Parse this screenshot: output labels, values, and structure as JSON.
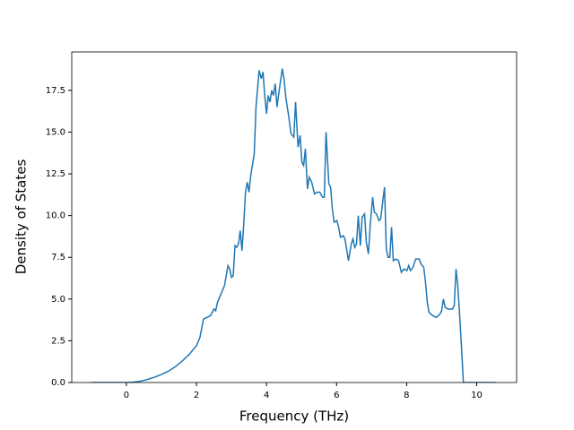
{
  "chart_data": {
    "type": "line",
    "x_label": "Frequency (THz)",
    "y_label": "Density of States",
    "color": "#1f77b4",
    "x": [
      -1.0,
      -0.5,
      0,
      0.2,
      0.4,
      0.6,
      0.8,
      1.0,
      1.2,
      1.4,
      1.6,
      1.8,
      2.0,
      2.1,
      2.2,
      2.3,
      2.4,
      2.5,
      2.55,
      2.6,
      2.7,
      2.8,
      2.9,
      2.95,
      3.0,
      3.05,
      3.1,
      3.15,
      3.2,
      3.25,
      3.3,
      3.35,
      3.4,
      3.45,
      3.5,
      3.55,
      3.65,
      3.7,
      3.79,
      3.85,
      3.9,
      3.95,
      4.0,
      4.05,
      4.1,
      4.15,
      4.2,
      4.25,
      4.3,
      4.35,
      4.45,
      4.5,
      4.55,
      4.63,
      4.7,
      4.78,
      4.83,
      4.9,
      4.96,
      5.01,
      5.06,
      5.11,
      5.17,
      5.22,
      5.29,
      5.37,
      5.45,
      5.52,
      5.6,
      5.65,
      5.7,
      5.78,
      5.83,
      5.88,
      5.93,
      6.01,
      6.06,
      6.11,
      6.19,
      6.24,
      6.34,
      6.42,
      6.47,
      6.52,
      6.57,
      6.62,
      6.68,
      6.73,
      6.8,
      6.85,
      6.91,
      6.96,
      7.03,
      7.08,
      7.14,
      7.21,
      7.26,
      7.31,
      7.37,
      7.42,
      7.47,
      7.52,
      7.57,
      7.62,
      7.7,
      7.77,
      7.85,
      7.93,
      8.01,
      8.06,
      8.11,
      8.18,
      8.26,
      8.36,
      8.41,
      8.49,
      8.54,
      8.59,
      8.64,
      8.75,
      8.85,
      8.95,
      9.0,
      9.05,
      9.1,
      9.18,
      9.31,
      9.36,
      9.41,
      9.46,
      9.51,
      9.57,
      9.62,
      9.95,
      10.54
    ],
    "values": [
      0,
      0,
      0,
      0.02,
      0.08,
      0.18,
      0.32,
      0.48,
      0.68,
      0.95,
      1.3,
      1.7,
      2.2,
      2.7,
      3.8,
      3.9,
      4.0,
      4.4,
      4.3,
      4.8,
      5.3,
      5.8,
      7.0,
      6.8,
      6.3,
      6.4,
      8.2,
      8.1,
      8.3,
      9.1,
      7.9,
      9.5,
      11.4,
      12.0,
      11.4,
      12.4,
      13.7,
      16.5,
      18.7,
      18.2,
      18.6,
      17.2,
      16.1,
      17.2,
      16.8,
      17.5,
      17.2,
      17.9,
      16.5,
      17.3,
      18.8,
      18.2,
      17.1,
      16.0,
      14.9,
      14.7,
      16.8,
      14.1,
      14.8,
      13.2,
      13.0,
      14.0,
      11.6,
      12.3,
      12.0,
      11.3,
      11.4,
      11.4,
      11.1,
      11.1,
      15.0,
      11.9,
      11.7,
      10.4,
      9.6,
      9.7,
      9.3,
      8.7,
      8.8,
      8.6,
      7.3,
      8.3,
      8.6,
      8.1,
      8.3,
      10.0,
      8.2,
      9.9,
      10.1,
      8.4,
      7.7,
      9.4,
      11.1,
      10.2,
      10.1,
      9.7,
      9.8,
      10.7,
      11.7,
      8.0,
      7.5,
      7.5,
      9.3,
      7.3,
      7.4,
      7.3,
      6.6,
      6.8,
      6.7,
      7.0,
      6.7,
      6.9,
      7.4,
      7.4,
      7.1,
      6.9,
      6.0,
      4.8,
      4.2,
      4.0,
      3.9,
      4.1,
      4.3,
      5.0,
      4.5,
      4.4,
      4.4,
      4.6,
      6.8,
      5.8,
      4.2,
      2.0,
      0,
      0,
      0
    ],
    "xlim": [
      -1.56,
      11.14
    ],
    "ylim": [
      0,
      19.8
    ],
    "xticks": [
      0,
      2,
      4,
      6,
      8,
      10
    ],
    "yticks": [
      {
        "value": 0,
        "label": "0.0"
      },
      2.5,
      {
        "value": 5,
        "label": "5.0"
      },
      7.5,
      {
        "value": 10,
        "label": "10.0"
      },
      12.5,
      {
        "value": 15,
        "label": "15.0"
      },
      17.5
    ]
  }
}
